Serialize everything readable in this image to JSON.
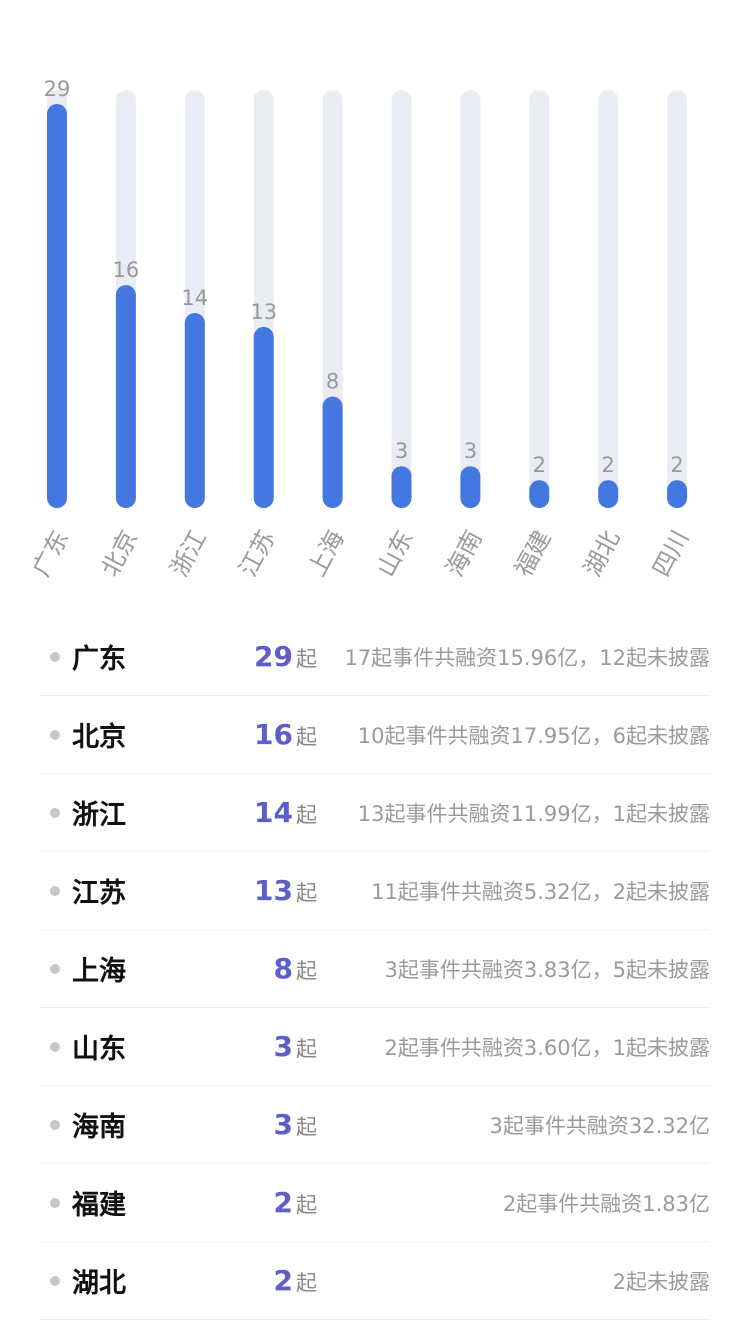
{
  "chart_data": {
    "type": "bar",
    "categories": [
      "广东",
      "北京",
      "浙江",
      "江苏",
      "上海",
      "山东",
      "海南",
      "福建",
      "湖北",
      "四川"
    ],
    "values": [
      29,
      16,
      14,
      13,
      8,
      3,
      3,
      2,
      2,
      2
    ],
    "ylim": [
      0,
      29
    ],
    "grid": false,
    "colors": {
      "bar": "#4478e0",
      "track": "#e9edf3",
      "value_label": "#999999",
      "category_label": "#9a9a9a"
    }
  },
  "list": {
    "unit": "起",
    "rows": [
      {
        "province": "广东",
        "count": "29",
        "desc": "17起事件共融资15.96亿，12起未披露"
      },
      {
        "province": "北京",
        "count": "16",
        "desc": "10起事件共融资17.95亿，6起未披露"
      },
      {
        "province": "浙江",
        "count": "14",
        "desc": "13起事件共融资11.99亿，1起未披露"
      },
      {
        "province": "江苏",
        "count": "13",
        "desc": "11起事件共融资5.32亿，2起未披露"
      },
      {
        "province": "上海",
        "count": "8",
        "desc": "3起事件共融资3.83亿，5起未披露"
      },
      {
        "province": "山东",
        "count": "3",
        "desc": "2起事件共融资3.60亿，1起未披露"
      },
      {
        "province": "海南",
        "count": "3",
        "desc": "3起事件共融资32.32亿"
      },
      {
        "province": "福建",
        "count": "2",
        "desc": "2起事件共融资1.83亿"
      },
      {
        "province": "湖北",
        "count": "2",
        "desc": "2起未披露"
      }
    ]
  },
  "colors": {
    "count": "#5b5fc7",
    "dot": "#c8c8c8",
    "divider": "#eeeeee"
  }
}
